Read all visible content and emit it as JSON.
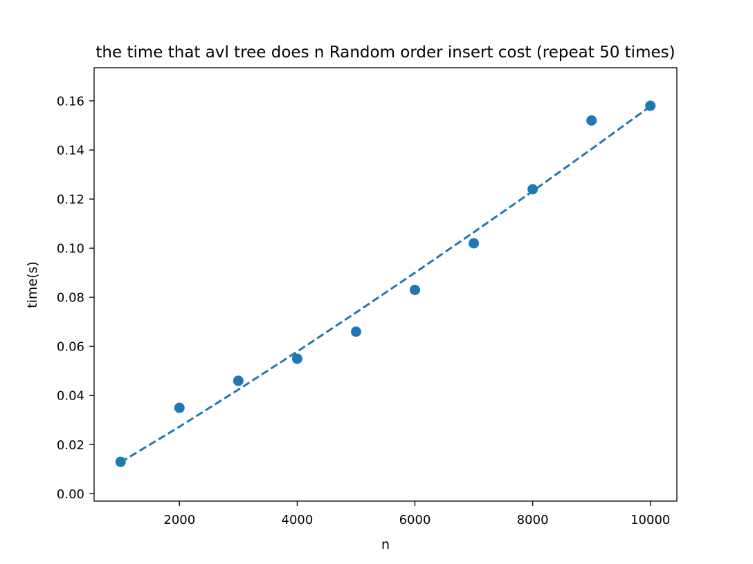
{
  "chart_data": {
    "type": "scatter",
    "title": "the time that avl tree does n Random order insert cost (repeat 50 times)",
    "xlabel": "n",
    "ylabel": "time(s)",
    "xlim": [
      550,
      10450
    ],
    "ylim": [
      -0.003,
      0.1735
    ],
    "xticks": [
      2000,
      4000,
      6000,
      8000,
      10000
    ],
    "yticks": [
      0.0,
      0.02,
      0.04,
      0.06,
      0.08,
      0.1,
      0.12,
      0.14,
      0.16
    ],
    "ytick_decimals": 2,
    "grid": false,
    "legend": "none",
    "series": [
      {
        "kind": "scatter",
        "x": [
          1000,
          2000,
          3000,
          4000,
          5000,
          6000,
          7000,
          8000,
          9000,
          10000
        ],
        "y": [
          0.013,
          0.035,
          0.046,
          0.055,
          0.066,
          0.083,
          0.102,
          0.124,
          0.152,
          0.158
        ],
        "color": "#1f77b4"
      },
      {
        "kind": "dashed-line",
        "x": [
          1000,
          2000,
          3000,
          4000,
          5000,
          6000,
          7000,
          8000,
          9000,
          10000
        ],
        "y": [
          0.0128,
          0.0273,
          0.0424,
          0.0579,
          0.0738,
          0.09,
          0.1065,
          0.1232,
          0.1404,
          0.1578
        ],
        "color": "#1f77b4"
      }
    ]
  }
}
